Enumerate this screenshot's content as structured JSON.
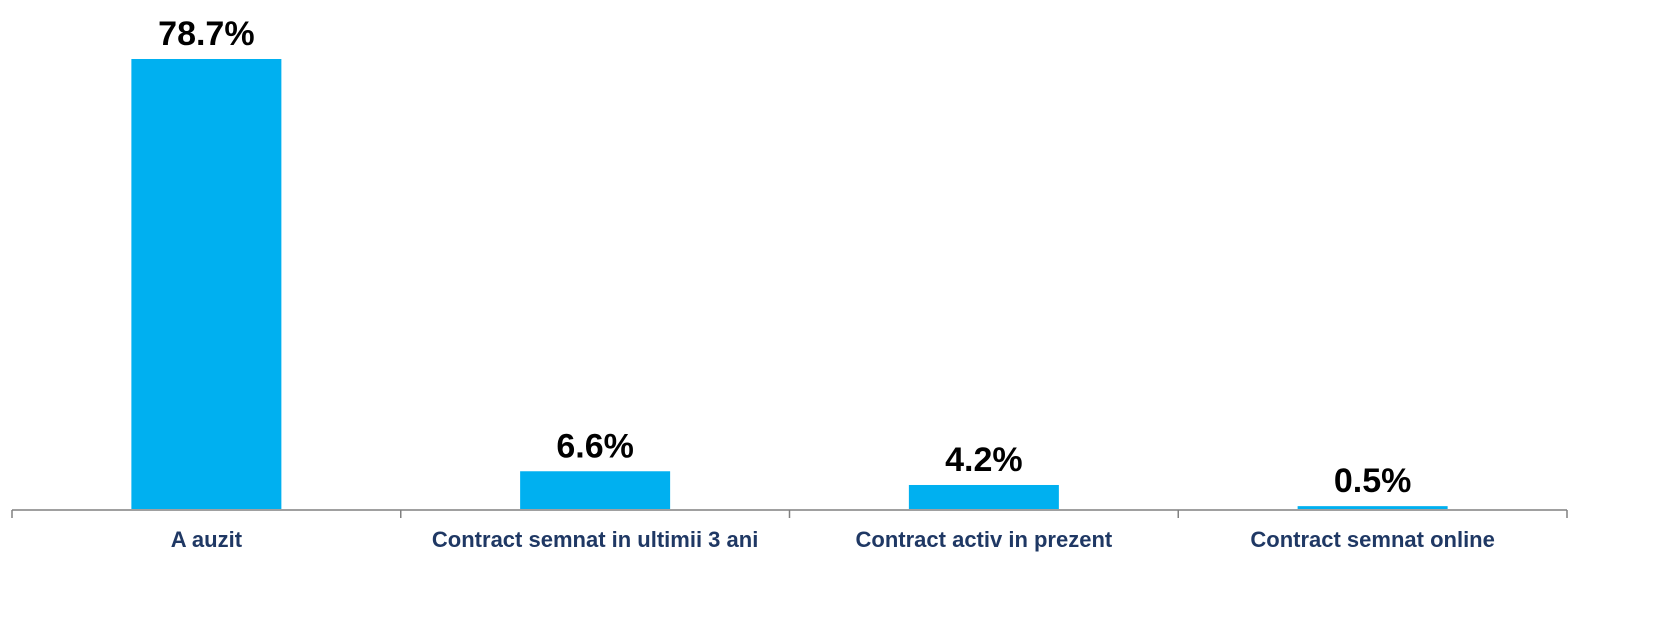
{
  "chart_data": {
    "type": "bar",
    "categories": [
      "A auzit",
      "Contract semnat in ultimii 3 ani",
      "Contract activ in prezent",
      "Contract semnat online"
    ],
    "values": [
      78.7,
      6.6,
      4.2,
      0.5
    ],
    "value_labels": [
      "78.7%",
      "6.6%",
      "4.2%",
      "0.5%"
    ],
    "color": "#00b0f0"
  }
}
